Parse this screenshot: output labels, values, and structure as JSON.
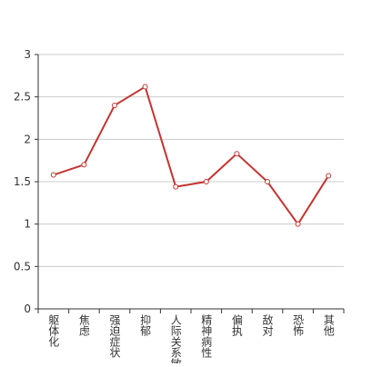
{
  "chart_data": {
    "type": "line",
    "categories": [
      "躯体化",
      "焦虑",
      "强迫症状",
      "抑郁",
      "人际关系敏感",
      "精神病性",
      "偏执",
      "敌对",
      "恐怖",
      "其他"
    ],
    "series": [
      {
        "color": "#c23531",
        "values": [
          1.58,
          1.7,
          2.4,
          2.62,
          1.44,
          1.5,
          1.83,
          1.5,
          1.0,
          1.57
        ]
      }
    ],
    "ylim": [
      0,
      3
    ],
    "yticks": [
      0,
      0.5,
      1,
      1.5,
      2,
      2.5,
      3
    ],
    "grid": true
  }
}
